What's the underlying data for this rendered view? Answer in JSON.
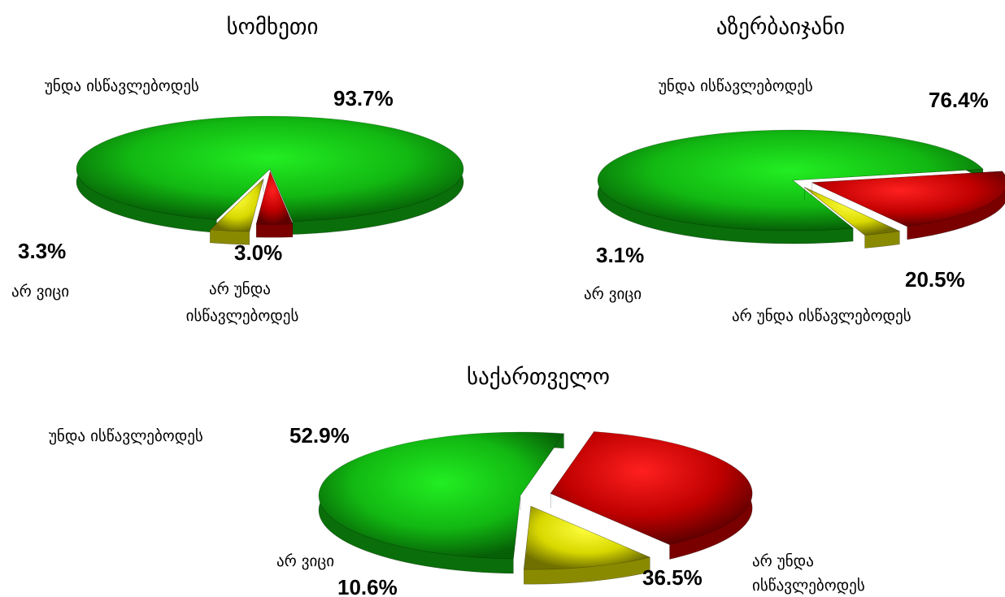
{
  "colors": {
    "should_study": "#1fd21f",
    "should_not_study": "#e01010",
    "dont_know": "#e8e800"
  },
  "chart_data": [
    {
      "type": "pie",
      "title": "სომხეთი",
      "slices": [
        {
          "label": "უნდა ისწავლებოდეს",
          "value": 93.7,
          "display": "93.7%",
          "color": "#1fd21f"
        },
        {
          "label": "არ უნდა ისწავლებოდეს",
          "value": 3.0,
          "display": "3.0%",
          "color": "#e01010"
        },
        {
          "label": "არ ვიცი",
          "value": 3.3,
          "display": "3.3%",
          "color": "#e8e800"
        }
      ]
    },
    {
      "type": "pie",
      "title": "აზერბაიჯანი",
      "slices": [
        {
          "label": "უნდა ისწავლებოდეს",
          "value": 76.4,
          "display": "76.4%",
          "color": "#1fd21f"
        },
        {
          "label": "არ უნდა ისწავლებოდეს",
          "value": 20.5,
          "display": "20.5%",
          "color": "#e01010"
        },
        {
          "label": "არ ვიცი",
          "value": 3.1,
          "display": "3.1%",
          "color": "#e8e800"
        }
      ]
    },
    {
      "type": "pie",
      "title": "საქართველო",
      "slices": [
        {
          "label": "უნდა ისწავლებოდეს",
          "value": 52.9,
          "display": "52.9%",
          "color": "#1fd21f"
        },
        {
          "label": "არ უნდა ისწავლებოდეს",
          "value": 36.5,
          "display": "36.5%",
          "color": "#e01010"
        },
        {
          "label": "არ ვიცი",
          "value": 10.6,
          "display": "10.6%",
          "color": "#e8e800"
        }
      ]
    }
  ]
}
